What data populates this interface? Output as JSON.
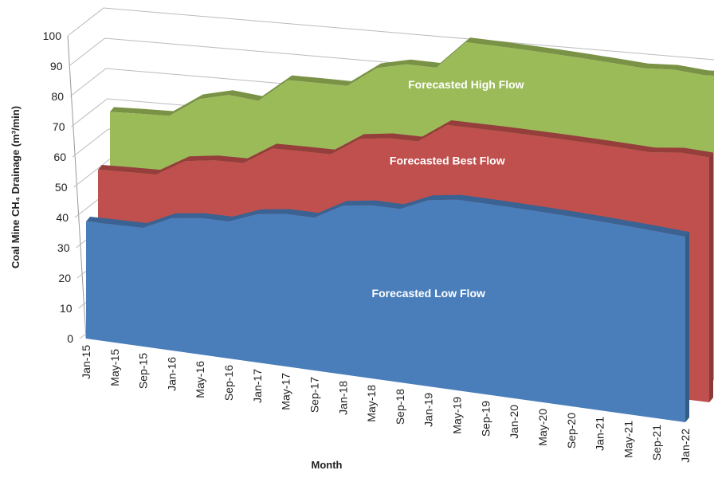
{
  "chart_data": {
    "type": "area3d",
    "y_label": "Coal Mine CH₄ Drainage (m³/min)",
    "x_label": "Month",
    "categories": [
      "Jan-15",
      "May-15",
      "Sep-15",
      "Jan-16",
      "May-16",
      "Sep-16",
      "Jan-17",
      "May-17",
      "Sep-17",
      "Jan-18",
      "May-18",
      "Sep-18",
      "Jan-19",
      "May-19",
      "Sep-19",
      "Jan-20",
      "May-20",
      "Sep-20",
      "Jan-21",
      "May-21",
      "Sep-21",
      "Jan-22"
    ],
    "series": [
      {
        "name": "Forecasted Low Flow",
        "color": "#4a7ebb",
        "values": [
          39,
          38,
          37,
          40,
          40,
          39,
          41,
          41,
          40,
          43,
          43,
          42,
          44,
          44,
          43,
          42,
          41,
          40,
          39,
          38,
          37,
          36
        ]
      },
      {
        "name": "Forecasted Best Flow",
        "color": "#c0504d",
        "values": [
          52,
          51,
          50,
          54,
          54,
          53,
          57,
          56,
          55,
          59,
          59,
          58,
          62,
          61,
          60,
          59,
          58,
          57,
          56,
          55,
          55,
          54
        ]
      },
      {
        "name": "Forecasted High Flow",
        "color": "#9bbb59",
        "values": [
          67,
          66,
          65,
          70,
          71,
          69,
          75,
          74,
          73,
          78,
          79,
          78,
          85,
          84,
          83,
          82,
          81,
          80,
          79,
          79,
          78,
          78
        ]
      }
    ],
    "ylim": [
      0,
      100
    ],
    "yticks": [
      0,
      10,
      20,
      30,
      40,
      50,
      60,
      70,
      80,
      90,
      100
    ],
    "grid": true
  }
}
